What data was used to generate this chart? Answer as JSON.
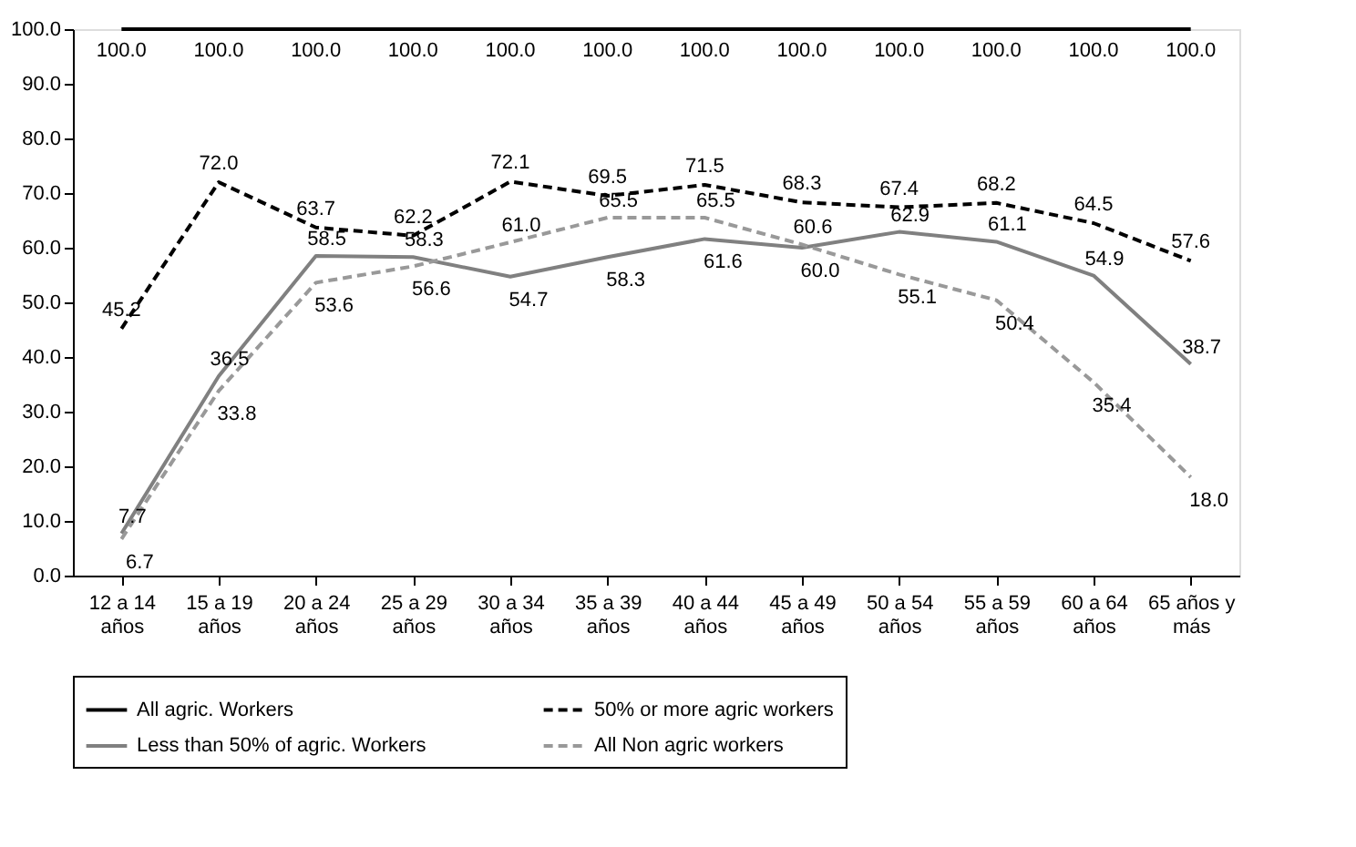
{
  "chart_data": {
    "type": "line",
    "categories": [
      "12 a 14 años",
      "15 a 19 años",
      "20 a 24 años",
      "25 a 29 años",
      "30 a 34 años",
      "35 a 39 años",
      "40 a 44 años",
      "45 a 49 años",
      "50 a 54 años",
      "55 a 59 años",
      "60 a 64 años",
      "65 años y más"
    ],
    "series": [
      {
        "name": "All agric. Workers",
        "color": "#000000",
        "line_style": "solid",
        "values": [
          100.0,
          100.0,
          100.0,
          100.0,
          100.0,
          100.0,
          100.0,
          100.0,
          100.0,
          100.0,
          100.0,
          100.0
        ],
        "value_labels": [
          "100.0",
          "100.0",
          "100.0",
          "100.0",
          "100.0",
          "100.0",
          "100.0",
          "100.0",
          "100.0",
          "100.0",
          "100.0",
          "100.0"
        ]
      },
      {
        "name": "50% or more agric workers",
        "color": "#000000",
        "line_style": "dashed",
        "values": [
          45.2,
          72.0,
          63.7,
          62.2,
          72.1,
          69.5,
          71.5,
          68.3,
          67.4,
          68.2,
          64.5,
          57.6
        ],
        "value_labels": [
          "45.2",
          "72.0",
          "63.7",
          "62.2",
          "72.1",
          "69.5",
          "71.5",
          "68.3",
          "67.4",
          "68.2",
          "64.5",
          "57.6"
        ]
      },
      {
        "name": "Less than 50% of agric. Workers",
        "color": "#808080",
        "line_style": "solid",
        "values": [
          7.7,
          36.5,
          58.5,
          58.3,
          54.7,
          58.3,
          61.6,
          60.0,
          62.9,
          61.1,
          54.9,
          38.7
        ],
        "value_labels": [
          "7.7",
          "36.5",
          "58.5",
          "58.3",
          "54.7",
          "58.3",
          "61.6",
          "60.0",
          "62.9",
          "61.1",
          "54.9",
          "38.7"
        ]
      },
      {
        "name": "All Non agric workers",
        "color": "#999999",
        "line_style": "dashed",
        "values": [
          6.7,
          33.8,
          53.6,
          56.6,
          61.0,
          65.5,
          65.5,
          60.6,
          55.1,
          50.4,
          35.4,
          18.0
        ],
        "value_labels": [
          "6.7",
          "33.8",
          "53.6",
          "56.6",
          "61.0",
          "65.5",
          "65.5",
          "60.6",
          "55.1",
          "50.4",
          "35.4",
          "18.0"
        ]
      }
    ],
    "ylim": [
      0,
      100
    ],
    "yticks": [
      {
        "value": 0,
        "label": "0.0"
      },
      {
        "value": 10,
        "label": "10.0"
      },
      {
        "value": 20,
        "label": "20.0"
      },
      {
        "value": 30,
        "label": "30.0"
      },
      {
        "value": 40,
        "label": "40.0"
      },
      {
        "value": 50,
        "label": "50.0"
      },
      {
        "value": 60,
        "label": "60.0"
      },
      {
        "value": 70,
        "label": "70.0"
      },
      {
        "value": 80,
        "label": "80.0"
      },
      {
        "value": 90,
        "label": "90.0"
      },
      {
        "value": 100,
        "label": "100.0"
      }
    ],
    "grid": false,
    "legend": "bottom"
  }
}
